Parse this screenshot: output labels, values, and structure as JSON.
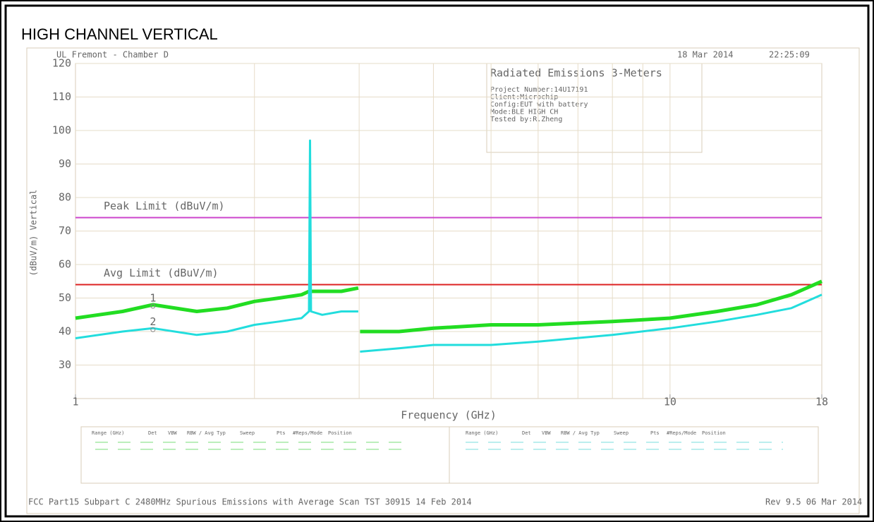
{
  "heading": "HIGH CHANNEL VERTICAL",
  "chart_data": {
    "type": "line",
    "site": "UL Fremont - Chamber D",
    "date": "18 Mar 2014",
    "time": "22:25:09",
    "info": {
      "title": "Radiated Emissions 3-Meters",
      "lines": [
        "Project Number:14U17191",
        "Client:Microchip",
        "Config:EUT with battery",
        "Mode:BLE HIGH CH",
        "Tested by:R.Zheng"
      ]
    },
    "ylabel": "(dBuV/m) Vertical",
    "xlabel": "Frequency (GHz)",
    "xlog": true,
    "xlim": [
      1,
      18
    ],
    "xticks": [
      1,
      10,
      18
    ],
    "xgrid": [
      2,
      3,
      4,
      5,
      6,
      7,
      8,
      9,
      10
    ],
    "ylim": [
      20,
      120
    ],
    "yticks": [
      30,
      40,
      50,
      60,
      70,
      80,
      90,
      100,
      110,
      120
    ],
    "grid": true,
    "x": [
      1,
      1.2,
      1.35,
      1.6,
      1.8,
      2,
      2.2,
      2.4,
      2.47,
      2.48,
      2.49,
      2.6,
      2.8,
      2.99,
      3,
      3.01,
      3.5,
      4,
      5,
      6,
      8,
      10,
      12,
      14,
      16,
      18
    ],
    "series": [
      {
        "color": "#22dd22",
        "values": [
          44,
          46,
          48,
          46,
          47,
          49,
          50,
          51,
          52,
          52,
          52,
          52,
          52,
          53,
          null,
          40,
          40,
          41,
          42,
          42,
          43,
          44,
          46,
          48,
          51,
          55
        ]
      },
      {
        "color": "#22dddd",
        "values": [
          38,
          40,
          41,
          39,
          40,
          42,
          43,
          44,
          46,
          97,
          46,
          45,
          46,
          46,
          null,
          34,
          35,
          36,
          36,
          37,
          39,
          41,
          43,
          45,
          47,
          51
        ]
      }
    ],
    "limits": [
      {
        "label": "Peak Limit (dBuV/m)",
        "value": 74,
        "color": "#cc44cc"
      },
      {
        "label": "Avg Limit (dBuV/m)",
        "value": 54,
        "color": "#dd2222"
      }
    ],
    "markers": [
      {
        "label": "1",
        "x": 1.35,
        "y": 48
      },
      {
        "label": "2",
        "x": 1.35,
        "y": 41
      }
    ],
    "table_headers": [
      "Range (GHz)",
      "Det",
      "VBW",
      "RBW / Avg Typ",
      "Sweep",
      "Pts",
      "#Reps/Mode",
      "Position"
    ],
    "footer": "FCC Part15 Subpart C 2480MHz Spurious Emissions with Average Scan TST 30915 14 Feb 2014",
    "revision": "Rev 9.5 06 Mar 2014"
  }
}
